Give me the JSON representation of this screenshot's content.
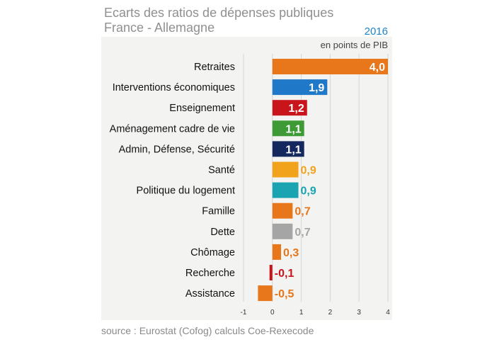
{
  "title_line1": "Ecarts des ratios de dépenses publiques",
  "title_line2": "France - Allemagne",
  "year": "2016",
  "unit_label": "en points de PIB",
  "source": "source : Eurostat (Cofog) calculs Coe-Rexecode",
  "chart_data": {
    "type": "bar",
    "orientation": "horizontal",
    "title": "Ecarts des ratios de dépenses publiques France - Allemagne",
    "xlabel": "",
    "ylabel": "",
    "xlim": [
      -1,
      4
    ],
    "x_ticks": [
      "-1",
      "0",
      "1",
      "2",
      "3",
      "4"
    ],
    "grid": true,
    "categories": [
      "Retraites",
      "Interventions économiques",
      "Enseignement",
      "Aménagement cadre de vie",
      "Admin, Défense, Sécurité",
      "Santé",
      "Politique du logement",
      "Famille",
      "Dette",
      "Chômage",
      "Recherche",
      "Assistance"
    ],
    "values": [
      4.0,
      1.9,
      1.2,
      1.1,
      1.1,
      0.9,
      0.9,
      0.7,
      0.7,
      0.3,
      -0.1,
      -0.5
    ],
    "value_labels": [
      "4,0",
      "1,9",
      "1,2",
      "1,1",
      "1,1",
      "0,9",
      "0,9",
      "0,7",
      "0,7",
      "0,3",
      "-0,1",
      "-0,5"
    ],
    "colors": [
      "#e8761a",
      "#1f78c8",
      "#c8151b",
      "#3d9a35",
      "#14285f",
      "#f0a31b",
      "#1aa3b0",
      "#e8761a",
      "#a5a5a5",
      "#e8761a",
      "#c8151b",
      "#e8761a"
    ],
    "label_inside": [
      true,
      true,
      true,
      true,
      true,
      false,
      false,
      false,
      false,
      false,
      false,
      false
    ]
  }
}
